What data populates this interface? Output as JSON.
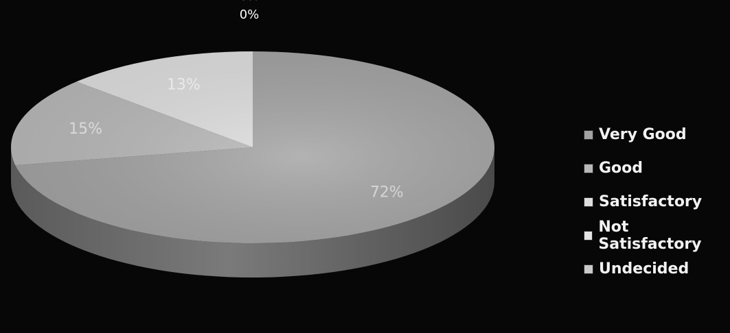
{
  "chart_data": {
    "type": "pie",
    "title": "",
    "labels": [
      "Very Good",
      "Good",
      "Satisfactory",
      "Not Satisfactory",
      "Undecided"
    ],
    "values": [
      72,
      15,
      13,
      0,
      0
    ],
    "value_labels": [
      "72%",
      "15%",
      "13%",
      "0%",
      "0%"
    ],
    "colors": [
      "#a2a2a2",
      "#b8b8b8",
      "#dedede",
      "#e4e4e4",
      "#c9c9c9"
    ],
    "legend": "right",
    "style": "3d"
  }
}
